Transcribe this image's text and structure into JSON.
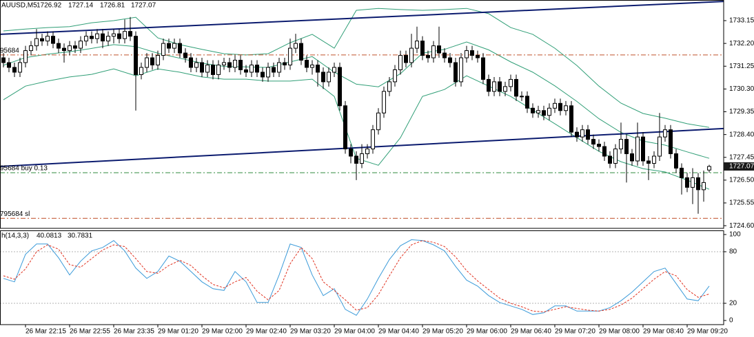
{
  "chart_data": [
    {
      "type": "candlestick",
      "title": "AUUSD,M5",
      "categories": [
        null,
        null,
        null,
        null,
        "26 Mar 22:15",
        null,
        null,
        null,
        null,
        null,
        null,
        null,
        "26 Mar 22:55",
        null,
        null,
        null,
        null,
        null,
        null,
        null,
        "26 Mar 23:35",
        null,
        null,
        null,
        null,
        null,
        null,
        null,
        "29 Mar 01:20",
        null,
        null,
        null,
        null,
        null,
        null,
        null,
        "29 Mar 02:00",
        null,
        null,
        null,
        null,
        null,
        null,
        null,
        "29 Mar 02:40",
        null,
        null,
        null,
        null,
        null,
        null,
        null,
        "29 Mar 03:20",
        null,
        null,
        null,
        null,
        null,
        null,
        null,
        "29 Mar 04:00",
        null,
        null,
        null,
        null,
        null,
        null,
        null,
        "29 Mar 04:40",
        null,
        null,
        null,
        null,
        null,
        null,
        null,
        "29 Mar 05:20",
        null,
        null,
        null,
        null,
        null,
        null,
        null,
        "29 Mar 06:00",
        null,
        null,
        null,
        null,
        null,
        null,
        null,
        "29 Mar 06:40",
        null,
        null,
        null,
        null,
        null,
        null,
        null,
        "29 Mar 07:20",
        null,
        null,
        null,
        null,
        null,
        null,
        null,
        "29 Mar 08:00",
        null,
        null,
        null,
        null,
        null,
        null,
        null,
        "29 Mar 08:40",
        null,
        null,
        null,
        null,
        null,
        null,
        null,
        "29 Mar 09:20",
        null,
        null,
        null,
        null
      ],
      "open": [
        1731.6,
        1731.4,
        1731.2,
        1731.0,
        1731.4,
        1731.9,
        1732.1,
        1732.4,
        1732.3,
        1732.5,
        1732.2,
        1732.0,
        1731.9,
        1732.1,
        1732.0,
        1732.3,
        1732.5,
        1732.4,
        1732.6,
        1732.3,
        1732.5,
        1732.6,
        1732.4,
        1732.7,
        1732.5,
        1730.9,
        1731.2,
        1731.6,
        1731.3,
        1731.7,
        1732.2,
        1732.0,
        1732.2,
        1731.8,
        1731.6,
        1731.2,
        1731.4,
        1731.0,
        1731.3,
        1730.9,
        1731.3,
        1731.4,
        1731.2,
        1731.5,
        1731.1,
        1731.0,
        1731.3,
        1731.0,
        1730.8,
        1731.2,
        1731.0,
        1731.4,
        1731.3,
        1732.0,
        1732.2,
        1731.5,
        1731.2,
        1731.3,
        1731.0,
        1730.6,
        1731.0,
        1731.2,
        1729.6,
        1727.8,
        1727.5,
        1727.2,
        1727.6,
        1727.8,
        1728.6,
        1729.3,
        1730.2,
        1730.6,
        1731.1,
        1731.7,
        1731.4,
        1732.0,
        1732.3,
        1731.7,
        1731.6,
        1732.1,
        1731.8,
        1731.6,
        1731.4,
        1730.6,
        1731.6,
        1731.9,
        1731.7,
        1731.6,
        1730.7,
        1730.2,
        1730.6,
        1730.2,
        1730.4,
        1730.7,
        1730.0,
        1730.0,
        1729.5,
        1729.3,
        1729.4,
        1729.2,
        1729.5,
        1729.7,
        1729.4,
        1729.6,
        1728.5,
        1728.3,
        1728.6,
        1728.2,
        1728.0,
        1727.9,
        1727.5,
        1727.2,
        1727.8,
        1728.2,
        1727.6,
        1727.3,
        1728.3,
        1727.3,
        1727.2,
        1727.5,
        1728.3,
        1728.6,
        1727.6,
        1727.0,
        1726.6,
        1726.2,
        1726.6,
        1726.1,
        1726.92
      ],
      "high": [
        1731.8,
        1731.6,
        1731.4,
        1731.6,
        1732.1,
        1732.3,
        1732.8,
        1732.6,
        1732.7,
        1732.7,
        1732.4,
        1732.2,
        1732.3,
        1732.3,
        1732.5,
        1732.7,
        1732.7,
        1732.8,
        1732.8,
        1732.7,
        1732.8,
        1732.8,
        1733.2,
        1733.3,
        1732.7,
        1731.4,
        1731.8,
        1731.8,
        1731.9,
        1732.4,
        1732.4,
        1732.4,
        1732.4,
        1732.0,
        1731.8,
        1731.6,
        1731.6,
        1731.5,
        1731.5,
        1731.5,
        1731.6,
        1731.6,
        1731.7,
        1731.7,
        1731.3,
        1731.5,
        1731.5,
        1731.2,
        1731.4,
        1731.4,
        1731.6,
        1731.6,
        1732.4,
        1732.6,
        1732.4,
        1731.7,
        1731.5,
        1731.5,
        1731.2,
        1731.2,
        1731.4,
        1731.4,
        1729.8,
        1728.0,
        1727.7,
        1728.0,
        1728.0,
        1728.8,
        1729.5,
        1730.4,
        1730.8,
        1731.3,
        1731.9,
        1731.9,
        1732.6,
        1732.9,
        1732.5,
        1731.9,
        1732.3,
        1732.9,
        1732.0,
        1731.8,
        1731.6,
        1731.8,
        1732.1,
        1732.1,
        1731.9,
        1731.8,
        1730.9,
        1730.8,
        1730.8,
        1730.6,
        1730.9,
        1730.9,
        1730.2,
        1730.2,
        1729.7,
        1729.6,
        1729.6,
        1729.7,
        1729.9,
        1729.9,
        1729.8,
        1729.8,
        1728.7,
        1728.8,
        1728.8,
        1728.4,
        1728.2,
        1728.1,
        1727.7,
        1728.0,
        1728.9,
        1728.4,
        1727.8,
        1728.9,
        1728.5,
        1727.5,
        1727.7,
        1729.3,
        1728.8,
        1728.8,
        1727.8,
        1727.2,
        1726.8,
        1727.0,
        1726.8,
        1726.9,
        1727.14
      ],
      "low": [
        1731.2,
        1731.0,
        1730.8,
        1730.8,
        1731.2,
        1731.7,
        1731.9,
        1732.1,
        1732.1,
        1732.0,
        1731.8,
        1731.4,
        1731.7,
        1731.8,
        1731.8,
        1732.1,
        1732.2,
        1732.2,
        1732.0,
        1732.1,
        1732.2,
        1732.2,
        1732.2,
        1732.3,
        1729.4,
        1730.7,
        1731.0,
        1731.1,
        1731.1,
        1731.5,
        1731.8,
        1731.8,
        1731.6,
        1731.4,
        1731.0,
        1731.0,
        1730.8,
        1730.8,
        1730.7,
        1730.7,
        1731.1,
        1731.0,
        1731.0,
        1730.9,
        1730.8,
        1730.8,
        1730.8,
        1730.6,
        1730.6,
        1730.8,
        1730.8,
        1731.1,
        1731.1,
        1731.8,
        1731.3,
        1731.0,
        1730.9,
        1730.4,
        1730.3,
        1730.4,
        1730.8,
        1729.4,
        1727.6,
        1727.2,
        1726.5,
        1727.0,
        1727.4,
        1727.6,
        1728.4,
        1729.1,
        1730.0,
        1730.4,
        1730.9,
        1731.2,
        1731.2,
        1731.8,
        1731.5,
        1731.4,
        1731.4,
        1731.6,
        1731.4,
        1731.2,
        1730.4,
        1730.4,
        1731.4,
        1731.5,
        1731.4,
        1730.5,
        1730.0,
        1730.0,
        1730.0,
        1730.0,
        1730.2,
        1729.8,
        1729.8,
        1729.3,
        1729.1,
        1729.1,
        1729.0,
        1729.0,
        1729.3,
        1729.2,
        1729.2,
        1728.3,
        1728.1,
        1728.1,
        1728.0,
        1727.8,
        1727.7,
        1727.3,
        1727.0,
        1727.0,
        1727.6,
        1726.4,
        1727.1,
        1727.1,
        1727.1,
        1726.5,
        1727.0,
        1727.3,
        1728.1,
        1727.4,
        1726.8,
        1725.9,
        1726.0,
        1725.5,
        1725.1,
        1725.6,
        1726.81
      ],
      "close": [
        1731.4,
        1731.2,
        1731.0,
        1731.4,
        1731.9,
        1732.1,
        1732.4,
        1732.3,
        1732.5,
        1732.2,
        1732.0,
        1731.9,
        1732.1,
        1732.0,
        1732.3,
        1732.5,
        1732.4,
        1732.6,
        1732.3,
        1732.5,
        1732.6,
        1732.4,
        1732.7,
        1732.5,
        1730.9,
        1731.2,
        1731.6,
        1731.3,
        1731.7,
        1732.2,
        1732.0,
        1732.2,
        1731.8,
        1731.6,
        1731.2,
        1731.4,
        1731.0,
        1731.3,
        1730.9,
        1731.3,
        1731.4,
        1731.2,
        1731.5,
        1731.1,
        1731.0,
        1731.3,
        1731.0,
        1730.8,
        1731.2,
        1731.0,
        1731.4,
        1731.3,
        1732.0,
        1732.2,
        1731.5,
        1731.2,
        1731.3,
        1731.0,
        1730.6,
        1731.0,
        1731.2,
        1729.6,
        1727.8,
        1727.5,
        1727.2,
        1727.6,
        1727.8,
        1728.6,
        1729.3,
        1730.2,
        1730.6,
        1731.1,
        1731.7,
        1731.4,
        1732.0,
        1732.3,
        1731.7,
        1731.6,
        1732.1,
        1731.8,
        1731.6,
        1731.4,
        1730.6,
        1731.6,
        1731.9,
        1731.7,
        1731.6,
        1730.7,
        1730.2,
        1730.6,
        1730.2,
        1730.4,
        1730.7,
        1730.0,
        1730.0,
        1729.5,
        1729.3,
        1729.4,
        1729.2,
        1729.5,
        1729.7,
        1729.4,
        1729.6,
        1728.5,
        1728.3,
        1728.6,
        1728.2,
        1728.0,
        1727.9,
        1727.5,
        1727.2,
        1727.8,
        1728.2,
        1727.6,
        1727.3,
        1728.3,
        1727.3,
        1727.2,
        1727.5,
        1728.3,
        1728.6,
        1727.6,
        1727.0,
        1726.6,
        1726.2,
        1726.6,
        1726.1,
        1726.4,
        1727.07
      ],
      "up_color": "#ffffff",
      "down_color": "#000000",
      "bands": {
        "x": [
          0,
          4,
          8,
          12,
          16,
          20,
          24,
          28,
          32,
          36,
          40,
          44,
          48,
          52,
          56,
          60,
          64,
          68,
          72,
          76,
          80,
          84,
          88,
          92,
          96,
          100,
          104,
          108,
          112,
          116,
          120,
          124,
          128
        ],
        "color": "#2f9e76",
        "series": [
          {
            "values": [
              1732.72,
              1732.8,
              1732.86,
              1732.9,
              1733.06,
              1733.15,
              1733.29,
              1732.43,
              1732.15,
              1731.95,
              1731.77,
              1731.72,
              1731.77,
              1732.23,
              1732.58,
              1732.0,
              1733.58,
              1733.66,
              1733.61,
              1733.58,
              1733.61,
              1733.66,
              1733.44,
              1732.86,
              1732.58,
              1732.0,
              1731.28,
              1730.42,
              1729.71,
              1729.28,
              1729.08,
              1728.85,
              1728.7
            ]
          },
          {
            "values": [
              1731.29,
              1731.61,
              1731.75,
              1731.85,
              1731.99,
              1732.15,
              1732.07,
              1731.79,
              1731.58,
              1731.38,
              1731.24,
              1731.22,
              1731.2,
              1731.43,
              1731.65,
              1731.0,
              1730.5,
              1730.39,
              1730.94,
              1731.79,
              1731.95,
              1732.26,
              1731.93,
              1731.43,
              1731.0,
              1730.43,
              1729.78,
              1729.06,
              1728.49,
              1728.13,
              1727.96,
              1727.68,
              1727.41
            ]
          },
          {
            "values": [
              1729.85,
              1730.42,
              1730.63,
              1730.8,
              1730.91,
              1731.14,
              1730.85,
              1731.14,
              1731.0,
              1730.8,
              1730.71,
              1730.71,
              1730.63,
              1730.63,
              1730.71,
              1729.99,
              1727.41,
              1727.12,
              1728.27,
              1729.99,
              1730.28,
              1730.85,
              1730.42,
              1729.99,
              1729.42,
              1728.85,
              1728.27,
              1727.7,
              1727.27,
              1726.98,
              1726.84,
              1726.5,
              1726.12
            ]
          }
        ]
      },
      "hlines": [
        {
          "label": "95684",
          "value": 1731.72,
          "color": "#c0502a"
        },
        {
          "label": "95684 buy 0.13",
          "value": 1726.81,
          "color": "#2e8b3e"
        },
        {
          "label": "795684 sl",
          "value": 1724.91,
          "color": "#c0502a"
        }
      ],
      "trendlines": [
        {
          "x": [
            -0.625,
            130.625
          ],
          "y": [
            1732.58,
            1733.95
          ],
          "color": "#0a1a6e"
        },
        {
          "x": [
            -0.625,
            130.625
          ],
          "y": [
            1727.07,
            1728.65
          ],
          "color": "#0a1a6e"
        }
      ],
      "ylim": [
        1724.49,
        1734.01
      ],
      "yticks": [
        1733.15,
        {
          "value": 1732.2,
          "label": "1732.20"
        },
        1731.25,
        {
          "value": 1730.3,
          "label": "1730.30"
        },
        1729.35,
        {
          "value": 1728.4,
          "label": "1728.40"
        },
        1727.45,
        {
          "value": 1726.5,
          "label": "1726.50"
        },
        1725.55,
        {
          "value": 1724.6,
          "label": "1724.60"
        }
      ]
    },
    {
      "type": "line",
      "title": "h(14,3,3)",
      "x": [
        0,
        2,
        4,
        6,
        8,
        10,
        12,
        14,
        16,
        18,
        20,
        22,
        24,
        26,
        28,
        30,
        32,
        34,
        36,
        38,
        40,
        42,
        44,
        46,
        48,
        50,
        52,
        54,
        56,
        58,
        60,
        62,
        64,
        66,
        68,
        70,
        72,
        74,
        76,
        78,
        80,
        82,
        84,
        86,
        88,
        90,
        92,
        94,
        96,
        98,
        100,
        102,
        104,
        106,
        108,
        110,
        112,
        114,
        116,
        118,
        120,
        122,
        124,
        126,
        128
      ],
      "series": [
        {
          "color": "#3a9ad9",
          "values": [
            49,
            45,
            77,
            89,
            89,
            73,
            53,
            69,
            81,
            85,
            93,
            81,
            61,
            49,
            57,
            75,
            69,
            57,
            45,
            37,
            35,
            57,
            45,
            21,
            21,
            53,
            89,
            85,
            53,
            29,
            37,
            13,
            6,
            25,
            49,
            71,
            87,
            94,
            93,
            88,
            81,
            63,
            47,
            40,
            29,
            21,
            17,
            13,
            7,
            9,
            17,
            17,
            11,
            11,
            11,
            15,
            23,
            33,
            45,
            57,
            61,
            43,
            25,
            23,
            40.0813
          ]
        },
        {
          "color": "#e0301e",
          "dashed": true,
          "values": [
            52,
            48,
            60,
            80,
            88,
            83,
            65,
            62,
            72,
            82,
            88,
            86,
            72,
            57,
            55,
            64,
            70,
            64,
            52,
            42,
            38,
            45,
            50,
            34,
            24,
            35,
            66,
            85,
            72,
            45,
            35,
            24,
            12,
            15,
            30,
            52,
            73,
            88,
            93,
            91,
            86,
            74,
            58,
            46,
            36,
            26,
            20,
            16,
            11,
            10,
            13,
            16,
            14,
            12,
            11,
            13,
            18,
            26,
            37,
            48,
            57,
            52,
            36,
            27,
            30.7831
          ]
        }
      ],
      "levels": [
        20,
        80
      ],
      "ylim": [
        -4.8,
        104
      ],
      "yticks": [
        0,
        20,
        80,
        100
      ]
    }
  ]
}
